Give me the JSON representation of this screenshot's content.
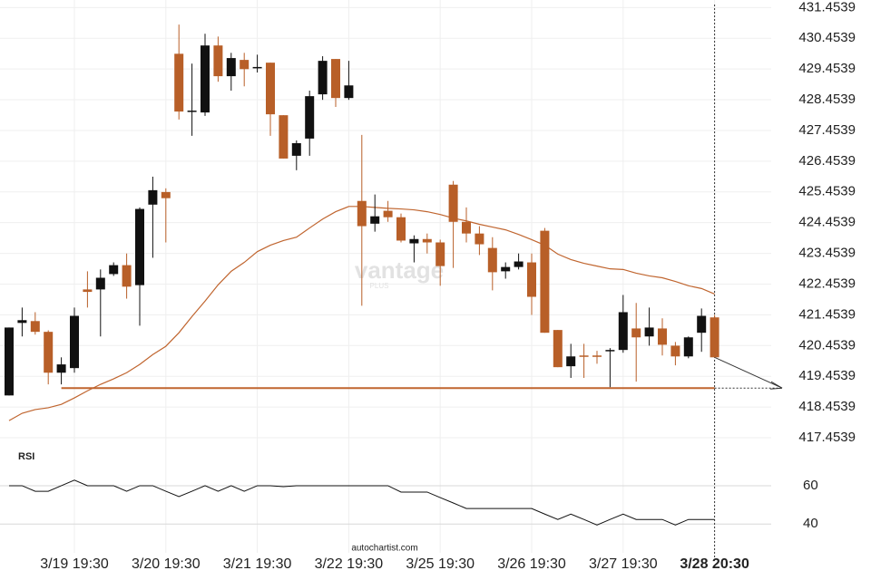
{
  "chart_data": {
    "type": "candlestick",
    "categories": [
      null,
      null,
      null,
      null,
      null,
      "3/19 19:30",
      null,
      null,
      null,
      null,
      null,
      null,
      "3/20 19:30",
      null,
      null,
      null,
      null,
      null,
      null,
      "3/21 19:30",
      null,
      null,
      null,
      null,
      null,
      null,
      "3/22 19:30",
      null,
      null,
      null,
      null,
      null,
      null,
      "3/25 19:30",
      null,
      null,
      null,
      null,
      null,
      null,
      "3/26 19:30",
      null,
      null,
      null,
      null,
      null,
      null,
      "3/27 19:30",
      null,
      null,
      null,
      null,
      null,
      null,
      "3/28 20:30"
    ],
    "open": [
      418.83,
      421.19,
      421.25,
      420.9,
      419.57,
      419.72,
      422.28,
      422.28,
      422.78,
      423.07,
      422.42,
      425.04,
      425.45,
      429.95,
      428.07,
      428.04,
      430.22,
      429.22,
      429.75,
      429.48,
      429.66,
      427.95,
      426.63,
      427.19,
      428.63,
      429.78,
      428.51,
      425.16,
      424.42,
      424.84,
      424.63,
      423.78,
      423.92,
      423.81,
      425.69,
      424.48,
      424.1,
      423.63,
      422.87,
      423.01,
      423.16,
      424.19,
      420.96,
      419.78,
      420.13,
      420.13,
      420.28,
      420.31,
      421.01,
      420.75,
      421.01,
      420.45,
      420.1,
      420.87,
      421.37
    ],
    "high": [
      421.04,
      421.69,
      421.54,
      420.95,
      420.07,
      421.69,
      422.87,
      422.93,
      423.16,
      423.45,
      424.95,
      425.95,
      425.57,
      430.9,
      429.63,
      430.6,
      430.51,
      429.98,
      429.98,
      429.92,
      429.66,
      427.95,
      427.13,
      428.75,
      429.87,
      429.78,
      429.72,
      427.31,
      425.37,
      425.16,
      424.75,
      424.04,
      424.1,
      423.9,
      425.81,
      424.95,
      424.34,
      423.98,
      423.16,
      423.45,
      423.45,
      424.28,
      420.96,
      420.51,
      420.51,
      420.28,
      420.37,
      422.1,
      421.84,
      421.69,
      421.34,
      420.57,
      420.75,
      421.66,
      421.45
    ],
    "low": [
      418.83,
      420.75,
      420.81,
      419.19,
      419.19,
      419.57,
      421.69,
      420.75,
      422.72,
      421.98,
      421.1,
      423.31,
      423.81,
      427.81,
      427.28,
      427.93,
      429.04,
      428.75,
      428.89,
      429.34,
      427.28,
      426.54,
      426.16,
      426.63,
      428.45,
      428.22,
      428.45,
      421.75,
      424.16,
      424.48,
      423.81,
      423.16,
      423.45,
      422.4,
      422.98,
      423.81,
      423.4,
      422.25,
      422.63,
      422.93,
      421.45,
      420.87,
      419.75,
      419.4,
      419.4,
      419.86,
      419.1,
      420.22,
      419.28,
      420.45,
      420.13,
      419.81,
      420.04,
      420.25,
      420.07
    ],
    "close": [
      421.04,
      421.28,
      420.9,
      419.57,
      419.84,
      421.42,
      422.2,
      422.66,
      423.07,
      422.37,
      424.9,
      425.51,
      425.25,
      428.07,
      428.1,
      430.22,
      429.22,
      429.81,
      429.45,
      429.52,
      427.98,
      426.54,
      427.04,
      428.57,
      429.72,
      428.51,
      428.92,
      424.34,
      424.66,
      424.63,
      423.87,
      423.92,
      423.81,
      423.04,
      424.48,
      424.1,
      423.75,
      422.84,
      423.01,
      423.19,
      422.04,
      420.87,
      419.75,
      420.1,
      420.1,
      420.1,
      420.31,
      421.54,
      420.72,
      421.04,
      420.48,
      420.1,
      420.72,
      421.42,
      420.07
    ],
    "up_color": "#111111",
    "down_color": "#b85f28",
    "series": [
      {
        "color": "#c0652f",
        "values": [
          418.01,
          418.25,
          418.37,
          418.43,
          418.54,
          418.75,
          418.98,
          419.19,
          419.37,
          419.57,
          419.84,
          420.16,
          420.43,
          420.87,
          421.4,
          421.9,
          422.43,
          422.87,
          423.16,
          423.51,
          423.72,
          423.87,
          423.98,
          424.28,
          424.57,
          424.81,
          424.98,
          424.98,
          424.95,
          424.92,
          424.9,
          424.87,
          424.81,
          424.72,
          424.6,
          424.51,
          424.4,
          424.31,
          424.22,
          424.07,
          423.9,
          423.72,
          423.43,
          423.25,
          423.13,
          423.04,
          422.95,
          422.93,
          422.81,
          422.72,
          422.66,
          422.54,
          422.4,
          422.31,
          422.13
        ]
      }
    ],
    "support": {
      "value": 419.07,
      "color": "#c0652f"
    },
    "ylim": [
      417.1,
      431.7
    ],
    "yticks": [
      431.4539,
      430.4539,
      429.4539,
      428.4539,
      427.4539,
      426.4539,
      425.4539,
      424.4539,
      423.4539,
      422.4539,
      421.4539,
      420.4539,
      419.4539,
      418.4539,
      417.4539
    ],
    "grid": true,
    "watermark": "vantage",
    "watermark_sub": "PLUS",
    "source": "autochartist.com",
    "indicator": {
      "type": "line",
      "title": "RSI",
      "color": "#111111",
      "values": [
        60,
        60,
        57.1,
        57.1,
        60,
        62.9,
        60,
        60,
        60,
        57.1,
        60,
        60,
        57.1,
        54.3,
        57.1,
        60,
        57.1,
        60,
        57.1,
        60,
        60,
        59.5,
        60,
        60,
        60,
        60,
        60,
        60,
        60,
        60,
        56.7,
        56.7,
        56.7,
        53.8,
        51,
        48.1,
        48.1,
        48.1,
        48.1,
        48.1,
        48.1,
        45.2,
        42.4,
        45.2,
        42.4,
        39.5,
        42.4,
        45.2,
        42.4,
        42.4,
        42.4,
        39.5,
        42.4,
        42.4,
        42.4
      ],
      "ylim": [
        25,
        77
      ],
      "yticks": [
        60,
        40
      ]
    }
  }
}
